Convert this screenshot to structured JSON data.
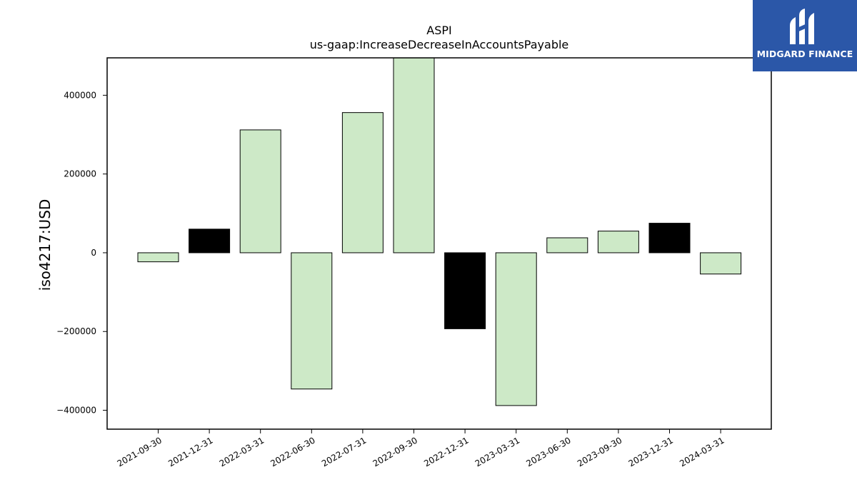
{
  "brand": {
    "name": "MIDGARD FINANCE",
    "background": "#2b57a8"
  },
  "chart_data": {
    "type": "bar",
    "title": "ASPI",
    "subtitle": "us-gaap:IncreaseDecreaseInAccountsPayable",
    "xlabel": "",
    "ylabel": "iso4217:USD",
    "categories": [
      "2021-09-30",
      "2021-12-31",
      "2022-03-31",
      "2022-06-30",
      "2022-07-31",
      "2022-09-30",
      "2022-12-31",
      "2023-03-31",
      "2023-06-30",
      "2023-09-30",
      "2023-12-31",
      "2024-03-31"
    ],
    "values": [
      -23000,
      60000,
      312000,
      -346000,
      356000,
      500000,
      -193000,
      -388000,
      38000,
      55000,
      75000,
      -54000
    ],
    "bar_colors": [
      "#cde9c7",
      "#000000",
      "#cde9c7",
      "#cde9c7",
      "#cde9c7",
      "#cde9c7",
      "#000000",
      "#cde9c7",
      "#cde9c7",
      "#cde9c7",
      "#000000",
      "#cde9c7"
    ],
    "ylim": [
      -448000,
      495000
    ],
    "yticks": [
      -400000,
      -200000,
      0,
      200000,
      400000
    ],
    "ytick_labels": [
      "−400000",
      "−200000",
      "0",
      "200000",
      "400000"
    ],
    "grid": false,
    "legend": "none"
  }
}
